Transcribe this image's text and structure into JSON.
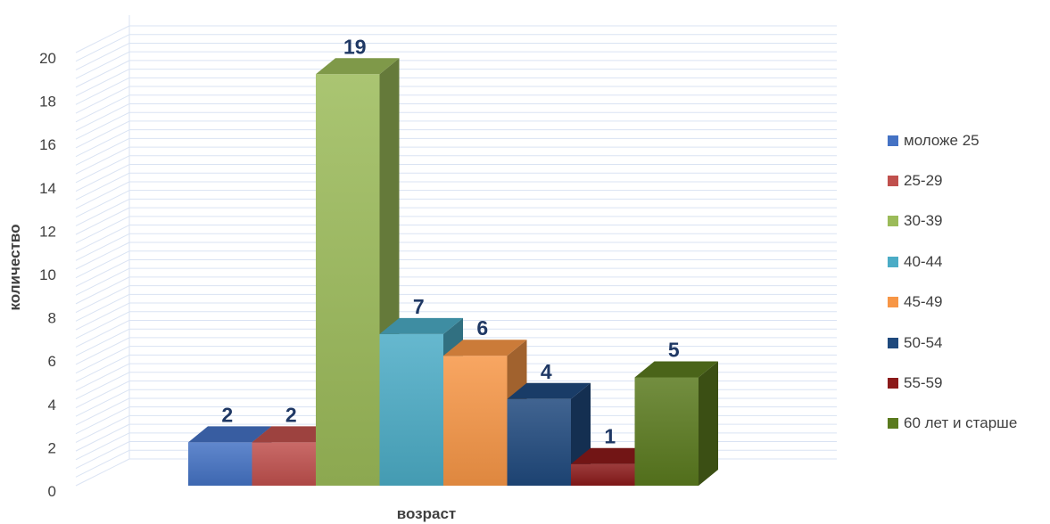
{
  "chart_data": {
    "type": "bar",
    "xlabel": "возраст",
    "ylabel": "количество",
    "ylim": [
      0,
      20
    ],
    "yticks": [
      "0",
      "2",
      "4",
      "6",
      "8",
      "10",
      "12",
      "14",
      "16",
      "18",
      "20"
    ],
    "grid": true,
    "legend_position": "right",
    "series": [
      {
        "name": "моложе 25",
        "value": 2,
        "color": "#4472c4"
      },
      {
        "name": "25-29",
        "value": 2,
        "color": "#c0504d"
      },
      {
        "name": "30-39",
        "value": 19,
        "color": "#9bbb59"
      },
      {
        "name": "40-44",
        "value": 7,
        "color": "#4bacc6"
      },
      {
        "name": "45-49",
        "value": 6,
        "color": "#f79646"
      },
      {
        "name": "50-54",
        "value": 4,
        "color": "#1f497d"
      },
      {
        "name": "55-59",
        "value": 1,
        "color": "#8b1a1a"
      },
      {
        "name": "60 лет и старше",
        "value": 5,
        "color": "#5a7a1e"
      }
    ]
  }
}
